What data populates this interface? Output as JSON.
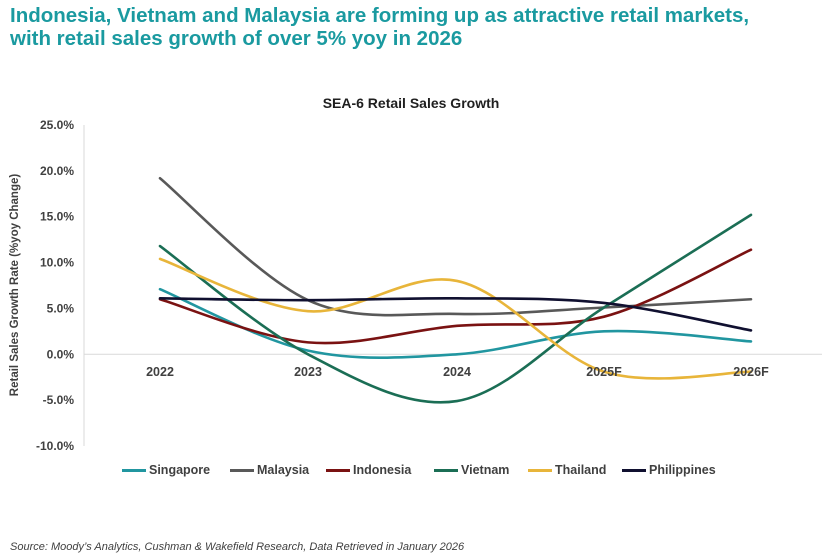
{
  "headline": {
    "line1": "Indonesia, Vietnam and Malaysia are forming up as attractive retail markets,",
    "line2": "with retail sales growth of over 5% yoy in 2026"
  },
  "source": "Source: Moody’s Analytics, Cushman & Wakefield Research, Data Retrieved in January 2026",
  "chart_data": {
    "type": "line",
    "title": "SEA-6 Retail Sales Growth",
    "ylabel": "Retail Sales Growth  Rate (%yoy Change)",
    "xlabel": "",
    "categories": [
      "2022",
      "2023",
      "2024",
      "2025F",
      "2026F"
    ],
    "ylim": [
      -10,
      25
    ],
    "yticks": [
      -10,
      -5,
      0,
      5,
      10,
      15,
      20,
      25
    ],
    "ytick_labels": [
      "-10.0%",
      "-5.0%",
      "0.0%",
      "5.0%",
      "10.0%",
      "15.0%",
      "20.0%",
      "25.0%"
    ],
    "grid": false,
    "smooth": true,
    "legend_position": "bottom",
    "series": [
      {
        "name": "Singapore",
        "color": "#2196a0",
        "values": [
          7.1,
          0.4,
          0.0,
          2.5,
          1.4
        ]
      },
      {
        "name": "Malaysia",
        "color": "#595959",
        "values": [
          19.2,
          5.9,
          4.4,
          5.1,
          6.0
        ]
      },
      {
        "name": "Indonesia",
        "color": "#7a1212",
        "values": [
          6.0,
          1.3,
          3.1,
          4.1,
          11.4
        ]
      },
      {
        "name": "Vietnam",
        "color": "#1b6e55",
        "values": [
          11.8,
          0.0,
          -5.1,
          5.1,
          15.2
        ]
      },
      {
        "name": "Thailand",
        "color": "#e8b53a",
        "values": [
          10.4,
          4.7,
          8.0,
          -1.9,
          -1.9
        ]
      },
      {
        "name": "Philippines",
        "color": "#101030",
        "values": [
          6.1,
          5.9,
          6.1,
          5.6,
          2.6
        ]
      }
    ]
  }
}
